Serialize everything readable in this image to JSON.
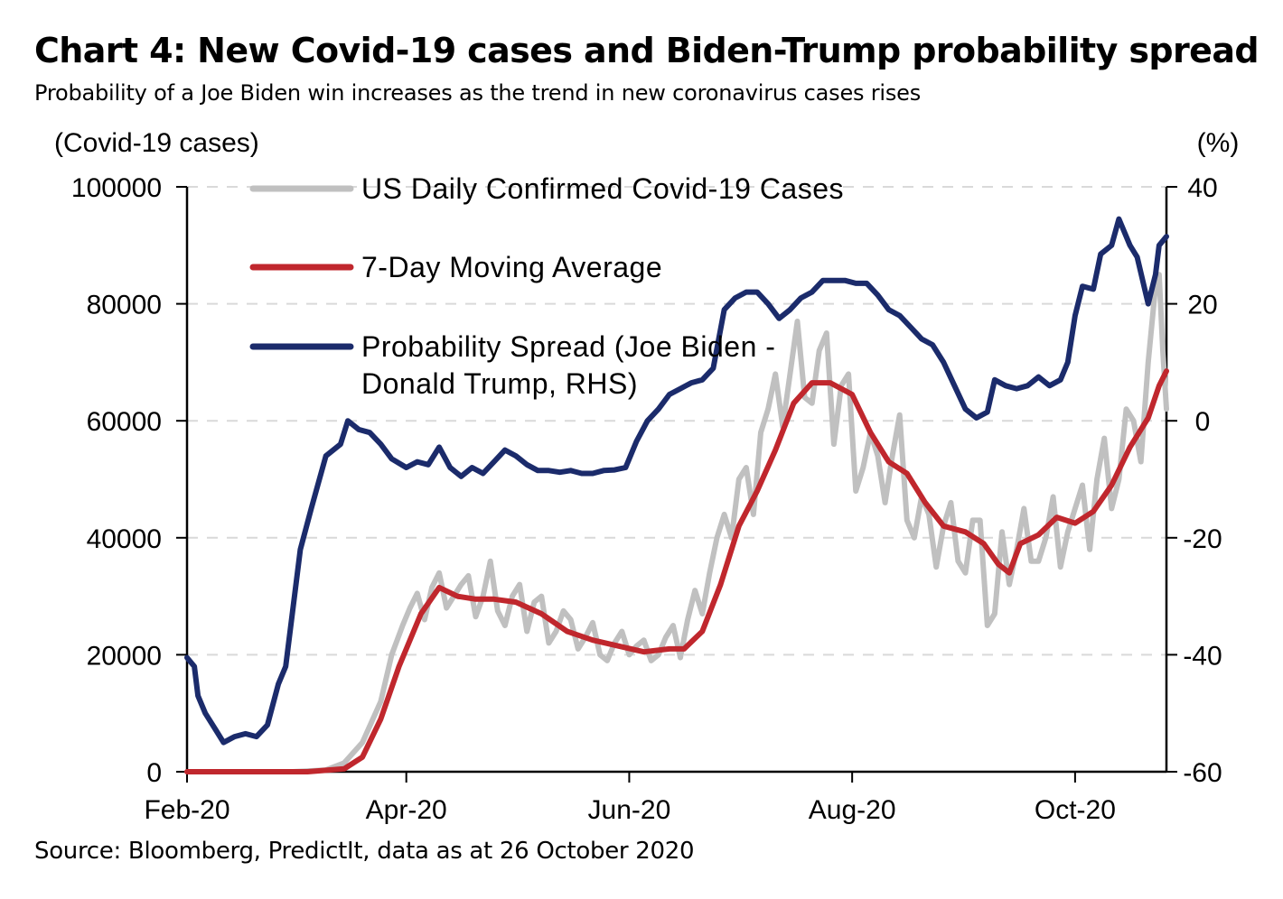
{
  "header": {
    "title": "Chart 4: New Covid-19 cases and Biden-Trump probability spread",
    "subtitle": "Probability of a Joe Biden win increases as the trend in new coronavirus cases rises"
  },
  "footer": {
    "source": "Source: Bloomberg, PredictIt, data as at 26 October 2020"
  },
  "chart_data": {
    "type": "line",
    "ylabel": "(Covid-19 cases)",
    "y2label": "(%)",
    "ylim": [
      0,
      100000
    ],
    "y2lim": [
      -60,
      40
    ],
    "yticks": [
      "0",
      "20000",
      "40000",
      "60000",
      "80000",
      "100000"
    ],
    "y2ticks": [
      "-60",
      "-40",
      "-20",
      "0",
      "20",
      "40"
    ],
    "xticks": [
      {
        "label": "Feb-20",
        "date": "2020-02-01"
      },
      {
        "label": "Apr-20",
        "date": "2020-04-01"
      },
      {
        "label": "Jun-20",
        "date": "2020-06-01"
      },
      {
        "label": "Aug-20",
        "date": "2020-08-01"
      },
      {
        "label": "Oct-20",
        "date": "2020-10-01"
      }
    ],
    "xlim": [
      "2020-02-01",
      "2020-10-26"
    ],
    "grid": "horizontal dashed",
    "legend_position": "top-left",
    "series": [
      {
        "name": "US Daily Confirmed Covid-19 Cases",
        "axis": "left",
        "color": "#c0c0c0",
        "points": [
          [
            "2020-02-01",
            0
          ],
          [
            "2020-03-01",
            0
          ],
          [
            "2020-03-10",
            300
          ],
          [
            "2020-03-15",
            1500
          ],
          [
            "2020-03-20",
            5000
          ],
          [
            "2020-03-25",
            12000
          ],
          [
            "2020-03-28",
            20000
          ],
          [
            "2020-03-31",
            25000
          ],
          [
            "2020-04-02",
            28000
          ],
          [
            "2020-04-04",
            30500
          ],
          [
            "2020-04-06",
            26000
          ],
          [
            "2020-04-08",
            31500
          ],
          [
            "2020-04-10",
            34000
          ],
          [
            "2020-04-12",
            28000
          ],
          [
            "2020-04-14",
            30000
          ],
          [
            "2020-04-16",
            32000
          ],
          [
            "2020-04-18",
            33500
          ],
          [
            "2020-04-20",
            26500
          ],
          [
            "2020-04-22",
            30000
          ],
          [
            "2020-04-24",
            36000
          ],
          [
            "2020-04-26",
            27500
          ],
          [
            "2020-04-28",
            25000
          ],
          [
            "2020-04-30",
            30000
          ],
          [
            "2020-05-02",
            32000
          ],
          [
            "2020-05-04",
            24000
          ],
          [
            "2020-05-06",
            29000
          ],
          [
            "2020-05-08",
            30000
          ],
          [
            "2020-05-10",
            22000
          ],
          [
            "2020-05-12",
            24000
          ],
          [
            "2020-05-14",
            27500
          ],
          [
            "2020-05-16",
            26000
          ],
          [
            "2020-05-18",
            21000
          ],
          [
            "2020-05-20",
            23000
          ],
          [
            "2020-05-22",
            25500
          ],
          [
            "2020-05-24",
            20000
          ],
          [
            "2020-05-26",
            19000
          ],
          [
            "2020-05-28",
            22000
          ],
          [
            "2020-05-30",
            24000
          ],
          [
            "2020-06-01",
            20000
          ],
          [
            "2020-06-03",
            21500
          ],
          [
            "2020-06-05",
            22500
          ],
          [
            "2020-06-07",
            19000
          ],
          [
            "2020-06-09",
            20000
          ],
          [
            "2020-06-11",
            23000
          ],
          [
            "2020-06-13",
            25000
          ],
          [
            "2020-06-15",
            19500
          ],
          [
            "2020-06-17",
            26000
          ],
          [
            "2020-06-19",
            31000
          ],
          [
            "2020-06-21",
            27000
          ],
          [
            "2020-06-23",
            34000
          ],
          [
            "2020-06-25",
            40000
          ],
          [
            "2020-06-27",
            44000
          ],
          [
            "2020-06-29",
            40000
          ],
          [
            "2020-07-01",
            50000
          ],
          [
            "2020-07-03",
            52000
          ],
          [
            "2020-07-05",
            44000
          ],
          [
            "2020-07-07",
            58000
          ],
          [
            "2020-07-09",
            62000
          ],
          [
            "2020-07-11",
            68000
          ],
          [
            "2020-07-13",
            59000
          ],
          [
            "2020-07-15",
            68000
          ],
          [
            "2020-07-17",
            77000
          ],
          [
            "2020-07-19",
            64000
          ],
          [
            "2020-07-21",
            63000
          ],
          [
            "2020-07-23",
            72000
          ],
          [
            "2020-07-25",
            75000
          ],
          [
            "2020-07-27",
            56000
          ],
          [
            "2020-07-29",
            66000
          ],
          [
            "2020-07-31",
            68000
          ],
          [
            "2020-08-02",
            48000
          ],
          [
            "2020-08-04",
            52000
          ],
          [
            "2020-08-06",
            58000
          ],
          [
            "2020-08-08",
            54000
          ],
          [
            "2020-08-10",
            46000
          ],
          [
            "2020-08-12",
            54000
          ],
          [
            "2020-08-14",
            61000
          ],
          [
            "2020-08-16",
            43000
          ],
          [
            "2020-08-18",
            40000
          ],
          [
            "2020-08-20",
            47000
          ],
          [
            "2020-08-22",
            44000
          ],
          [
            "2020-08-24",
            35000
          ],
          [
            "2020-08-26",
            42000
          ],
          [
            "2020-08-28",
            46000
          ],
          [
            "2020-08-30",
            36000
          ],
          [
            "2020-09-01",
            34000
          ],
          [
            "2020-09-03",
            43000
          ],
          [
            "2020-09-05",
            43000
          ],
          [
            "2020-09-07",
            25000
          ],
          [
            "2020-09-09",
            27000
          ],
          [
            "2020-09-11",
            41000
          ],
          [
            "2020-09-13",
            32000
          ],
          [
            "2020-09-15",
            38000
          ],
          [
            "2020-09-17",
            45000
          ],
          [
            "2020-09-19",
            36000
          ],
          [
            "2020-09-21",
            36000
          ],
          [
            "2020-09-23",
            40000
          ],
          [
            "2020-09-25",
            47000
          ],
          [
            "2020-09-27",
            35000
          ],
          [
            "2020-09-29",
            41000
          ],
          [
            "2020-10-01",
            45000
          ],
          [
            "2020-10-03",
            49000
          ],
          [
            "2020-10-05",
            38000
          ],
          [
            "2020-10-07",
            50000
          ],
          [
            "2020-10-09",
            57000
          ],
          [
            "2020-10-11",
            45000
          ],
          [
            "2020-10-13",
            50000
          ],
          [
            "2020-10-15",
            62000
          ],
          [
            "2020-10-17",
            60000
          ],
          [
            "2020-10-19",
            53000
          ],
          [
            "2020-10-21",
            70000
          ],
          [
            "2020-10-23",
            83000
          ],
          [
            "2020-10-24",
            85000
          ],
          [
            "2020-10-25",
            72000
          ],
          [
            "2020-10-26",
            62000
          ]
        ]
      },
      {
        "name": "7-Day Moving Average",
        "axis": "left",
        "color": "#c0272d",
        "points": [
          [
            "2020-02-01",
            0
          ],
          [
            "2020-03-05",
            0
          ],
          [
            "2020-03-15",
            500
          ],
          [
            "2020-03-20",
            2500
          ],
          [
            "2020-03-25",
            9000
          ],
          [
            "2020-03-30",
            18000
          ],
          [
            "2020-04-05",
            27000
          ],
          [
            "2020-04-10",
            31500
          ],
          [
            "2020-04-15",
            30000
          ],
          [
            "2020-04-20",
            29500
          ],
          [
            "2020-04-25",
            29500
          ],
          [
            "2020-05-01",
            29000
          ],
          [
            "2020-05-08",
            27000
          ],
          [
            "2020-05-15",
            24000
          ],
          [
            "2020-05-22",
            22500
          ],
          [
            "2020-05-29",
            21500
          ],
          [
            "2020-06-05",
            20500
          ],
          [
            "2020-06-12",
            21000
          ],
          [
            "2020-06-16",
            21000
          ],
          [
            "2020-06-21",
            24000
          ],
          [
            "2020-06-26",
            32000
          ],
          [
            "2020-07-01",
            42000
          ],
          [
            "2020-07-06",
            48000
          ],
          [
            "2020-07-11",
            55000
          ],
          [
            "2020-07-16",
            63000
          ],
          [
            "2020-07-21",
            66500
          ],
          [
            "2020-07-26",
            66500
          ],
          [
            "2020-08-01",
            64500
          ],
          [
            "2020-08-06",
            58000
          ],
          [
            "2020-08-11",
            53000
          ],
          [
            "2020-08-16",
            51000
          ],
          [
            "2020-08-21",
            46000
          ],
          [
            "2020-08-26",
            42000
          ],
          [
            "2020-09-01",
            41000
          ],
          [
            "2020-09-06",
            39000
          ],
          [
            "2020-09-10",
            35500
          ],
          [
            "2020-09-13",
            34000
          ],
          [
            "2020-09-16",
            39000
          ],
          [
            "2020-09-21",
            40500
          ],
          [
            "2020-09-26",
            43500
          ],
          [
            "2020-10-01",
            42500
          ],
          [
            "2020-10-06",
            44500
          ],
          [
            "2020-10-11",
            49000
          ],
          [
            "2020-10-16",
            55500
          ],
          [
            "2020-10-21",
            60500
          ],
          [
            "2020-10-24",
            66000
          ],
          [
            "2020-10-26",
            68500
          ]
        ]
      },
      {
        "name": "Probability Spread (Joe Biden - Donald Trump, RHS)",
        "axis": "right",
        "color": "#1b2b6b",
        "points": [
          [
            "2020-02-01",
            -40.5
          ],
          [
            "2020-02-03",
            -42
          ],
          [
            "2020-02-04",
            -47
          ],
          [
            "2020-02-06",
            -50
          ],
          [
            "2020-02-09",
            -53
          ],
          [
            "2020-02-11",
            -55
          ],
          [
            "2020-02-14",
            -54
          ],
          [
            "2020-02-17",
            -53.5
          ],
          [
            "2020-02-20",
            -54
          ],
          [
            "2020-02-23",
            -52
          ],
          [
            "2020-02-26",
            -45
          ],
          [
            "2020-02-28",
            -42
          ],
          [
            "2020-03-03",
            -22
          ],
          [
            "2020-03-06",
            -15
          ],
          [
            "2020-03-10",
            -6
          ],
          [
            "2020-03-14",
            -4
          ],
          [
            "2020-03-16",
            0
          ],
          [
            "2020-03-19",
            -1.5
          ],
          [
            "2020-03-22",
            -2
          ],
          [
            "2020-03-25",
            -4
          ],
          [
            "2020-03-28",
            -6.5
          ],
          [
            "2020-04-01",
            -8
          ],
          [
            "2020-04-04",
            -7
          ],
          [
            "2020-04-07",
            -7.5
          ],
          [
            "2020-04-10",
            -4.5
          ],
          [
            "2020-04-13",
            -8
          ],
          [
            "2020-04-16",
            -9.5
          ],
          [
            "2020-04-19",
            -8
          ],
          [
            "2020-04-22",
            -9
          ],
          [
            "2020-04-25",
            -7
          ],
          [
            "2020-04-28",
            -5
          ],
          [
            "2020-05-01",
            -6
          ],
          [
            "2020-05-04",
            -7.5
          ],
          [
            "2020-05-07",
            -8.5
          ],
          [
            "2020-05-10",
            -8.5
          ],
          [
            "2020-05-13",
            -8.8
          ],
          [
            "2020-05-16",
            -8.5
          ],
          [
            "2020-05-19",
            -9
          ],
          [
            "2020-05-22",
            -9
          ],
          [
            "2020-05-25",
            -8.5
          ],
          [
            "2020-05-28",
            -8.4
          ],
          [
            "2020-05-31",
            -8
          ],
          [
            "2020-06-03",
            -3.5
          ],
          [
            "2020-06-06",
            0
          ],
          [
            "2020-06-09",
            2
          ],
          [
            "2020-06-12",
            4.5
          ],
          [
            "2020-06-15",
            5.5
          ],
          [
            "2020-06-18",
            6.5
          ],
          [
            "2020-06-21",
            7
          ],
          [
            "2020-06-24",
            9
          ],
          [
            "2020-06-27",
            19
          ],
          [
            "2020-06-30",
            21
          ],
          [
            "2020-07-03",
            22
          ],
          [
            "2020-07-06",
            22
          ],
          [
            "2020-07-09",
            20
          ],
          [
            "2020-07-12",
            17.5
          ],
          [
            "2020-07-15",
            19
          ],
          [
            "2020-07-18",
            21
          ],
          [
            "2020-07-21",
            22
          ],
          [
            "2020-07-24",
            24
          ],
          [
            "2020-07-27",
            24
          ],
          [
            "2020-07-30",
            24
          ],
          [
            "2020-08-02",
            23.5
          ],
          [
            "2020-08-05",
            23.5
          ],
          [
            "2020-08-08",
            21.5
          ],
          [
            "2020-08-11",
            19
          ],
          [
            "2020-08-14",
            18
          ],
          [
            "2020-08-17",
            16
          ],
          [
            "2020-08-20",
            14
          ],
          [
            "2020-08-23",
            13
          ],
          [
            "2020-08-26",
            10
          ],
          [
            "2020-08-29",
            6
          ],
          [
            "2020-09-01",
            2
          ],
          [
            "2020-09-04",
            0.5
          ],
          [
            "2020-09-07",
            1.5
          ],
          [
            "2020-09-09",
            7
          ],
          [
            "2020-09-12",
            6
          ],
          [
            "2020-09-15",
            5.5
          ],
          [
            "2020-09-18",
            6
          ],
          [
            "2020-09-21",
            7.5
          ],
          [
            "2020-09-24",
            6
          ],
          [
            "2020-09-27",
            7
          ],
          [
            "2020-09-29",
            10
          ],
          [
            "2020-10-01",
            18
          ],
          [
            "2020-10-03",
            23
          ],
          [
            "2020-10-06",
            22.5
          ],
          [
            "2020-10-08",
            28.5
          ],
          [
            "2020-10-11",
            30
          ],
          [
            "2020-10-13",
            34.5
          ],
          [
            "2020-10-16",
            30
          ],
          [
            "2020-10-18",
            28
          ],
          [
            "2020-10-21",
            20
          ],
          [
            "2020-10-23",
            25
          ],
          [
            "2020-10-24",
            30
          ],
          [
            "2020-10-26",
            31.5
          ]
        ]
      }
    ]
  }
}
